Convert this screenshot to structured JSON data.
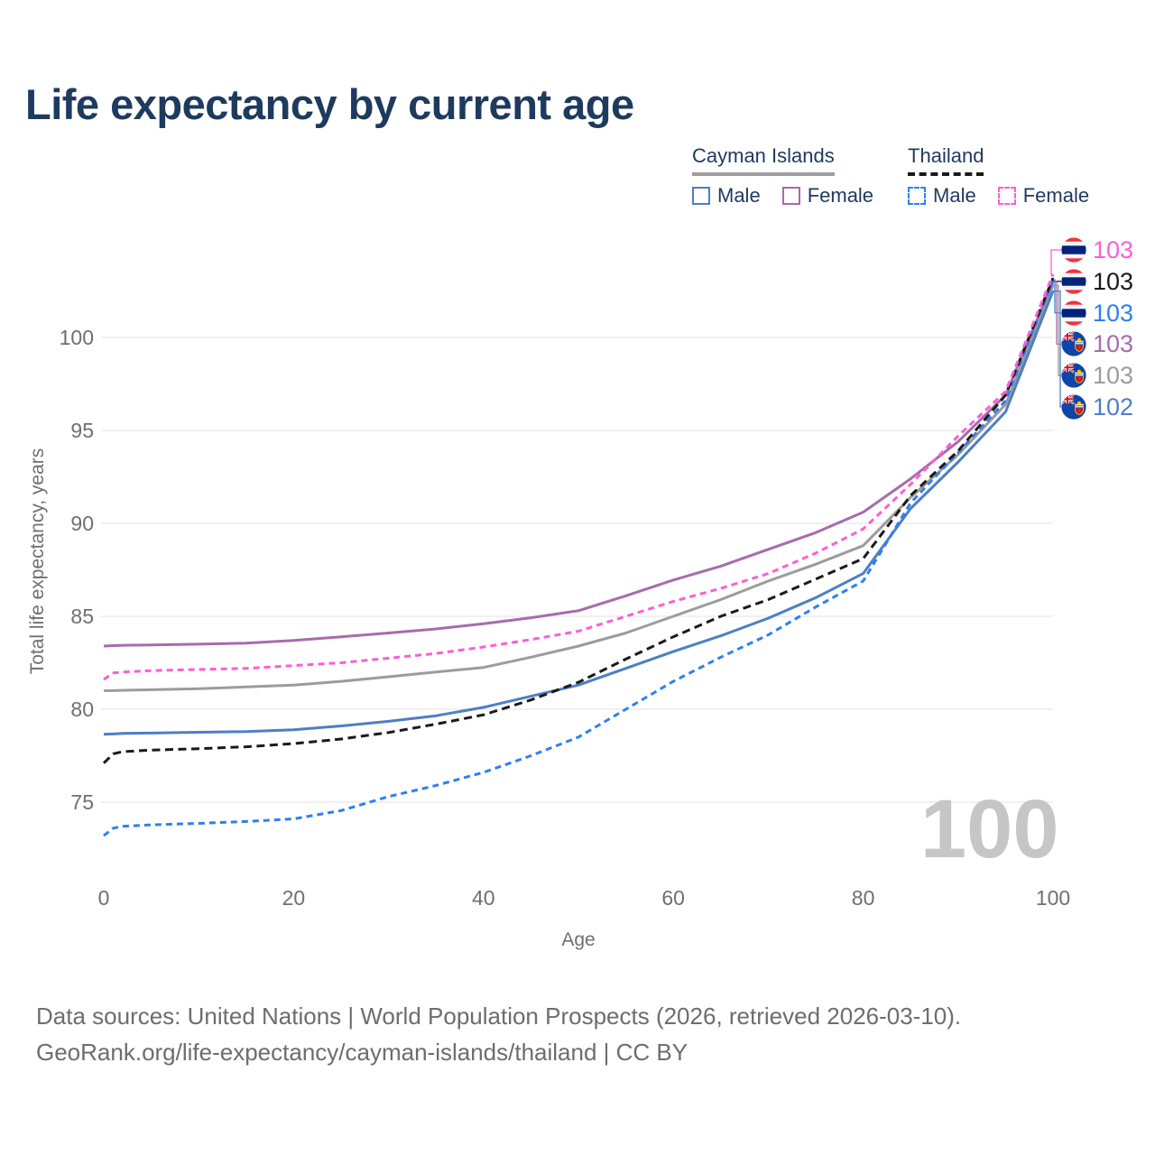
{
  "title": "Life expectancy by current age",
  "legend": {
    "groups": [
      {
        "name": "Cayman Islands",
        "rule_style": "solid",
        "rule_color": "#9e9e9e",
        "items": [
          {
            "label": "Male",
            "color": "#4d7fc4",
            "dashed": false
          },
          {
            "label": "Female",
            "color": "#a76cab",
            "dashed": false
          }
        ]
      },
      {
        "name": "Thailand",
        "rule_style": "dashed",
        "rule_color": "#1a1a1a",
        "items": [
          {
            "label": "Male",
            "color": "#2e80f0",
            "dashed": true
          },
          {
            "label": "Female",
            "color": "#fb5fd4",
            "dashed": true
          }
        ]
      }
    ]
  },
  "axes": {
    "x_label": "Age",
    "y_label": "Total life expectancy, years",
    "x_ticks": [
      0,
      20,
      40,
      60,
      80,
      100
    ],
    "y_ticks": [
      75,
      80,
      85,
      90,
      95,
      100
    ]
  },
  "watermark": "100",
  "footer": {
    "line1": "Data sources: United Nations | World Population Prospects (2026, retrieved 2026-03-10).",
    "line2": "GeoRank.org/life-expectancy/cayman-islands/thailand | CC BY"
  },
  "chart_data": {
    "type": "line",
    "title": "Life expectancy by current age",
    "xlabel": "Age",
    "ylabel": "Total life expectancy, years",
    "xlim": [
      0,
      100
    ],
    "ylim": [
      72.5,
      104
    ],
    "grid": "horizontal",
    "x": [
      0,
      1,
      2,
      5,
      10,
      15,
      20,
      25,
      30,
      35,
      40,
      45,
      50,
      55,
      60,
      65,
      70,
      75,
      80,
      85,
      90,
      95,
      100
    ],
    "series": [
      {
        "name": "Thailand Female",
        "country": "Thailand",
        "sex": "Female",
        "flag": "thailand",
        "color": "#fb5fd4",
        "dash": "dashed",
        "end_label": "103",
        "values": [
          81.6,
          81.95,
          82.0,
          82.08,
          82.14,
          82.2,
          82.35,
          82.5,
          82.75,
          83.0,
          83.35,
          83.75,
          84.2,
          85.0,
          85.8,
          86.5,
          87.3,
          88.4,
          89.7,
          92.1,
          94.7,
          97.1,
          103.4
        ]
      },
      {
        "name": "Thailand",
        "country": "Thailand",
        "sex": "Both",
        "flag": "thailand",
        "color": "#1a1a1a",
        "dash": "dashed",
        "end_label": "103",
        "values": [
          77.1,
          77.6,
          77.72,
          77.8,
          77.88,
          77.98,
          78.15,
          78.4,
          78.75,
          79.2,
          79.7,
          80.5,
          81.45,
          82.7,
          83.9,
          85.0,
          85.9,
          87.0,
          88.1,
          91.5,
          93.9,
          96.9,
          103.2
        ]
      },
      {
        "name": "Thailand Male",
        "country": "Thailand",
        "sex": "Male",
        "flag": "thailand",
        "color": "#2e80f0",
        "dash": "dashed",
        "end_label": "103",
        "values": [
          73.2,
          73.6,
          73.7,
          73.78,
          73.86,
          73.96,
          74.1,
          74.55,
          75.3,
          75.9,
          76.6,
          77.5,
          78.5,
          80.0,
          81.5,
          82.8,
          84.0,
          85.5,
          86.9,
          91.1,
          93.8,
          96.6,
          103.1
        ]
      },
      {
        "name": "Cayman Islands Female",
        "country": "Cayman Islands",
        "sex": "Female",
        "flag": "cayman",
        "color": "#a76cab",
        "dash": "solid",
        "end_label": "103",
        "values": [
          83.4,
          83.42,
          83.44,
          83.46,
          83.5,
          83.56,
          83.7,
          83.9,
          84.1,
          84.32,
          84.6,
          84.92,
          85.3,
          86.1,
          86.95,
          87.7,
          88.6,
          89.5,
          90.6,
          92.4,
          94.4,
          96.9,
          103.0
        ]
      },
      {
        "name": "Cayman Islands",
        "country": "Cayman Islands",
        "sex": "Both",
        "flag": "cayman",
        "color": "#9c9c9c",
        "dash": "solid",
        "end_label": "103",
        "values": [
          81.0,
          81.0,
          81.02,
          81.05,
          81.1,
          81.2,
          81.3,
          81.5,
          81.75,
          82.0,
          82.25,
          82.8,
          83.4,
          84.1,
          85.0,
          85.9,
          86.9,
          87.8,
          88.8,
          91.4,
          93.7,
          96.4,
          102.8
        ]
      },
      {
        "name": "Cayman Islands Male",
        "country": "Cayman Islands",
        "sex": "Male",
        "flag": "cayman",
        "color": "#4d7fc4",
        "dash": "solid",
        "end_label": "102",
        "values": [
          78.65,
          78.67,
          78.7,
          78.72,
          78.76,
          78.8,
          78.9,
          79.1,
          79.35,
          79.65,
          80.1,
          80.7,
          81.3,
          82.2,
          83.1,
          83.95,
          84.9,
          86.0,
          87.3,
          90.8,
          93.3,
          96.0,
          102.5
        ]
      }
    ]
  }
}
